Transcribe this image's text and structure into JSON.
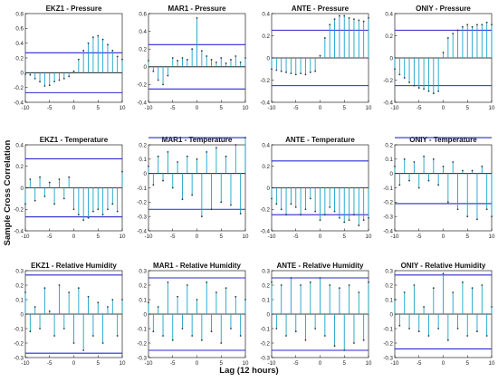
{
  "figure": {
    "ylabel": "Sample Cross Correlation",
    "xlabel": "Lag (12 hours)"
  },
  "colors": {
    "stem": "#1aa3c8",
    "marker": "#333333",
    "bound": "#2a2ad0",
    "zero": "#000000"
  },
  "chart_data": [
    {
      "type": "stem",
      "title": "EKZ1 - Pressure",
      "xlim": [
        -10,
        10
      ],
      "ylim": [
        -0.4,
        0.8
      ],
      "yticks": [
        -0.4,
        -0.2,
        0,
        0.2,
        0.4,
        0.6,
        0.8
      ],
      "xticks": [
        -10,
        -5,
        0,
        5,
        10
      ],
      "bounds": [
        0.27,
        -0.27
      ],
      "x": [
        -10,
        -9,
        -8,
        -7,
        -6,
        -5,
        -4,
        -3,
        -2,
        -1,
        0,
        1,
        2,
        3,
        4,
        5,
        6,
        7,
        8,
        9,
        10
      ],
      "y": [
        -0.02,
        -0.03,
        -0.08,
        -0.12,
        -0.18,
        -0.17,
        -0.12,
        -0.1,
        -0.08,
        -0.05,
        0.02,
        0.18,
        0.3,
        0.4,
        0.48,
        0.5,
        0.45,
        0.38,
        0.3,
        0.22,
        0.18
      ]
    },
    {
      "type": "stem",
      "title": "MAR1 - Pressure",
      "xlim": [
        -10,
        10
      ],
      "ylim": [
        -0.4,
        0.6
      ],
      "yticks": [
        -0.4,
        -0.2,
        0,
        0.2,
        0.4,
        0.6
      ],
      "xticks": [
        -10,
        -5,
        0,
        5,
        10
      ],
      "bounds": [
        0.25,
        -0.25
      ],
      "x": [
        -10,
        -9,
        -8,
        -7,
        -6,
        -5,
        -4,
        -3,
        -2,
        -1,
        0,
        1,
        2,
        3,
        4,
        5,
        6,
        7,
        8,
        9,
        10
      ],
      "y": [
        0.07,
        -0.05,
        -0.15,
        -0.2,
        -0.1,
        0.1,
        0.07,
        0.1,
        0.08,
        0.2,
        0.55,
        0.18,
        0.12,
        0.08,
        0.05,
        0.1,
        0.04,
        0.08,
        0.12,
        0.05,
        0.1
      ]
    },
    {
      "type": "stem",
      "title": "ANTE - Pressure",
      "xlim": [
        -10,
        10
      ],
      "ylim": [
        -0.4,
        0.4
      ],
      "yticks": [
        -0.4,
        -0.2,
        0,
        0.2,
        0.4
      ],
      "xticks": [
        -10,
        -5,
        0,
        5,
        10
      ],
      "bounds": [
        0.25,
        -0.25
      ],
      "x": [
        -10,
        -9,
        -8,
        -7,
        -6,
        -5,
        -4,
        -3,
        -2,
        -1,
        0,
        1,
        2,
        3,
        4,
        5,
        6,
        7,
        8,
        9,
        10
      ],
      "y": [
        -0.1,
        -0.11,
        -0.12,
        -0.13,
        -0.14,
        -0.15,
        -0.14,
        -0.15,
        -0.13,
        -0.12,
        0.02,
        0.18,
        0.3,
        0.35,
        0.38,
        0.38,
        0.36,
        0.35,
        0.34,
        0.33,
        0.36
      ]
    },
    {
      "type": "stem",
      "title": "ONIY - Pressure",
      "xlim": [
        -10,
        10
      ],
      "ylim": [
        -0.4,
        0.4
      ],
      "yticks": [
        -0.4,
        -0.2,
        0,
        0.2,
        0.4
      ],
      "xticks": [
        -10,
        -5,
        0,
        5,
        10
      ],
      "bounds": [
        0.25,
        -0.25
      ],
      "x": [
        -10,
        -9,
        -8,
        -7,
        -6,
        -5,
        -4,
        -3,
        -2,
        -1,
        0,
        1,
        2,
        3,
        4,
        5,
        6,
        7,
        8,
        9,
        10
      ],
      "y": [
        -0.1,
        -0.15,
        -0.18,
        -0.22,
        -0.25,
        -0.27,
        -0.28,
        -0.3,
        -0.32,
        -0.3,
        0.05,
        0.18,
        0.22,
        0.25,
        0.28,
        0.3,
        0.28,
        0.3,
        0.3,
        0.32,
        0.3
      ]
    },
    {
      "type": "stem",
      "title": "EKZ1 - Temperature",
      "xlim": [
        -10,
        10
      ],
      "ylim": [
        -0.4,
        0.4
      ],
      "yticks": [
        -0.4,
        -0.2,
        0,
        0.2,
        0.4
      ],
      "xticks": [
        -10,
        -5,
        0,
        5,
        10
      ],
      "bounds": [
        0.27,
        -0.27
      ],
      "x": [
        -10,
        -9,
        -8,
        -7,
        -6,
        -5,
        -4,
        -3,
        -2,
        -1,
        0,
        1,
        2,
        3,
        4,
        5,
        6,
        7,
        8,
        9,
        10
      ],
      "y": [
        -0.15,
        0.08,
        -0.12,
        0.1,
        -0.08,
        0.05,
        -0.15,
        0.08,
        -0.1,
        0.1,
        -0.2,
        -0.25,
        -0.3,
        -0.28,
        -0.22,
        -0.2,
        -0.25,
        -0.2,
        -0.15,
        -0.22,
        0.15
      ]
    },
    {
      "type": "stem",
      "title": "MAR1 - Temperature",
      "xlim": [
        -10,
        10
      ],
      "ylim": [
        -0.4,
        0.2
      ],
      "yticks": [
        -0.4,
        -0.3,
        -0.2,
        -0.1,
        0,
        0.1,
        0.2
      ],
      "xticks": [
        -10,
        -5,
        0,
        5,
        10
      ],
      "bounds": [
        0.25,
        -0.25
      ],
      "x": [
        -10,
        -9,
        -8,
        -7,
        -6,
        -5,
        -4,
        -3,
        -2,
        -1,
        0,
        1,
        2,
        3,
        4,
        5,
        6,
        7,
        8,
        9,
        10
      ],
      "y": [
        0.05,
        -0.08,
        0.12,
        -0.05,
        0.15,
        -0.1,
        0.08,
        -0.18,
        0.12,
        -0.15,
        0.1,
        -0.3,
        0.15,
        -0.25,
        0.18,
        -0.2,
        0.12,
        -0.22,
        0.2,
        -0.28,
        0.25
      ]
    },
    {
      "type": "stem",
      "title": "ANTE - Temperature",
      "xlim": [
        -10,
        10
      ],
      "ylim": [
        -0.4,
        0.4
      ],
      "yticks": [
        -0.4,
        -0.2,
        0,
        0.2,
        0.4
      ],
      "xticks": [
        -10,
        -5,
        0,
        5,
        10
      ],
      "bounds": [
        0.25,
        -0.25
      ],
      "x": [
        -10,
        -9,
        -8,
        -7,
        -6,
        -5,
        -4,
        -3,
        -2,
        -1,
        0,
        1,
        2,
        3,
        4,
        5,
        6,
        7,
        8,
        9,
        10
      ],
      "y": [
        -0.1,
        -0.15,
        -0.2,
        -0.25,
        -0.15,
        -0.18,
        -0.25,
        -0.2,
        -0.1,
        -0.22,
        -0.3,
        -0.25,
        -0.18,
        -0.22,
        -0.28,
        -0.32,
        -0.3,
        -0.25,
        -0.35,
        -0.3,
        -0.28
      ]
    },
    {
      "type": "stem",
      "title": "ONIY - Temperature",
      "xlim": [
        -10,
        10
      ],
      "ylim": [
        -0.4,
        0.2
      ],
      "yticks": [
        -0.4,
        -0.3,
        -0.2,
        -0.1,
        0,
        0.1,
        0.2
      ],
      "xticks": [
        -10,
        -5,
        0,
        5,
        10
      ],
      "bounds": [
        0.25,
        -0.21
      ],
      "x": [
        -10,
        -9,
        -8,
        -7,
        -6,
        -5,
        -4,
        -3,
        -2,
        -1,
        0,
        1,
        2,
        3,
        4,
        5,
        6,
        7,
        8,
        9,
        10
      ],
      "y": [
        0.05,
        -0.08,
        0.1,
        -0.05,
        0.08,
        -0.1,
        0.12,
        -0.05,
        0.1,
        -0.08,
        0.05,
        -0.2,
        0.08,
        -0.25,
        0.02,
        -0.3,
        0.02,
        -0.32,
        0.05,
        -0.25,
        -0.3
      ]
    },
    {
      "type": "stem",
      "title": "EKZ1 - Relative Humidity",
      "xlim": [
        -10,
        10
      ],
      "ylim": [
        -0.3,
        0.3
      ],
      "yticks": [
        -0.3,
        -0.2,
        -0.1,
        0,
        0.1,
        0.2,
        0.3
      ],
      "xticks": [
        -10,
        -5,
        0,
        5,
        10
      ],
      "bounds": [
        0.27,
        -0.27
      ],
      "x": [
        -10,
        -9,
        -8,
        -7,
        -6,
        -5,
        -4,
        -3,
        -2,
        -1,
        0,
        1,
        2,
        3,
        4,
        5,
        6,
        7,
        8,
        9,
        10
      ],
      "y": [
        0.15,
        -0.12,
        0.05,
        -0.1,
        0.18,
        0.02,
        -0.15,
        0.2,
        -0.1,
        0.15,
        -0.2,
        0.18,
        -0.25,
        0.12,
        -0.15,
        0.08,
        -0.2,
        0.05,
        0.1,
        -0.15,
        0.1
      ]
    },
    {
      "type": "stem",
      "title": "MAR1 - Relative Humidity",
      "xlim": [
        -10,
        10
      ],
      "ylim": [
        -0.3,
        0.3
      ],
      "yticks": [
        -0.3,
        -0.2,
        -0.1,
        0,
        0.1,
        0.2,
        0.3
      ],
      "xticks": [
        -10,
        -5,
        0,
        5,
        10
      ],
      "bounds": [
        0.25,
        -0.25
      ],
      "x": [
        -10,
        -9,
        -8,
        -7,
        -6,
        -5,
        -4,
        -3,
        -2,
        -1,
        0,
        1,
        2,
        3,
        4,
        5,
        6,
        7,
        8,
        9,
        10
      ],
      "y": [
        0.08,
        -0.12,
        0.05,
        -0.15,
        0.22,
        -0.18,
        0.12,
        -0.1,
        0.2,
        -0.15,
        0.1,
        -0.18,
        0.22,
        -0.12,
        0.15,
        -0.2,
        0.18,
        -0.1,
        0.12,
        -0.15,
        0.1
      ]
    },
    {
      "type": "stem",
      "title": "ANTE - Relative Humidity",
      "xlim": [
        -10,
        10
      ],
      "ylim": [
        -0.3,
        0.3
      ],
      "yticks": [
        -0.3,
        -0.2,
        -0.1,
        0,
        0.1,
        0.2,
        0.3
      ],
      "xticks": [
        -10,
        -5,
        0,
        5,
        10
      ],
      "bounds": [
        0.25,
        -0.25
      ],
      "x": [
        -10,
        -9,
        -8,
        -7,
        -6,
        -5,
        -4,
        -3,
        -2,
        -1,
        0,
        1,
        2,
        3,
        4,
        5,
        6,
        7,
        8,
        9,
        10
      ],
      "y": [
        0.22,
        -0.1,
        0.2,
        -0.15,
        0.25,
        -0.12,
        0.2,
        -0.18,
        0.22,
        -0.1,
        0.25,
        -0.15,
        0.2,
        -0.22,
        0.18,
        -0.25,
        0.2,
        -0.2,
        0.15,
        -0.18,
        0.22
      ]
    },
    {
      "type": "stem",
      "title": "ONIY - Relative Humidity",
      "xlim": [
        -10,
        10
      ],
      "ylim": [
        -0.3,
        0.3
      ],
      "yticks": [
        -0.3,
        -0.2,
        -0.1,
        0,
        0.1,
        0.2,
        0.3
      ],
      "xticks": [
        -10,
        -5,
        0,
        5,
        10
      ],
      "bounds": [
        0.27,
        -0.24
      ],
      "x": [
        -10,
        -9,
        -8,
        -7,
        -6,
        -5,
        -4,
        -3,
        -2,
        -1,
        0,
        1,
        2,
        3,
        4,
        5,
        6,
        7,
        8,
        9,
        10
      ],
      "y": [
        0.1,
        -0.08,
        0.15,
        -0.1,
        0.2,
        -0.12,
        0.05,
        -0.15,
        0.18,
        -0.1,
        0.28,
        -0.18,
        0.15,
        -0.1,
        0.22,
        -0.15,
        0.18,
        -0.12,
        0.2,
        -0.15,
        0.05
      ]
    }
  ]
}
